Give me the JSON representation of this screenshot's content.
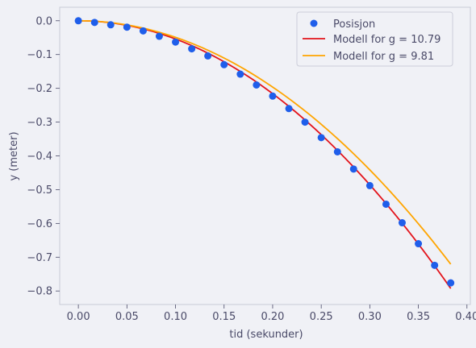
{
  "chart_data": {
    "type": "scatter",
    "xlabel": "tid (sekunder)",
    "ylabel": "y (meter)",
    "xlim": [
      -0.0192,
      0.4035
    ],
    "ylim": [
      -0.84,
      0.04
    ],
    "xticks": [
      0.0,
      0.05,
      0.1,
      0.15,
      0.2,
      0.25,
      0.3,
      0.35,
      0.4
    ],
    "xtick_labels": [
      "0.00",
      "0.05",
      "0.10",
      "0.15",
      "0.20",
      "0.25",
      "0.30",
      "0.35",
      "0.40"
    ],
    "yticks": [
      0.0,
      -0.1,
      -0.2,
      -0.3,
      -0.4,
      -0.5,
      -0.6,
      -0.7,
      -0.8
    ],
    "ytick_labels": [
      "0.0",
      "−0.1",
      "−0.2",
      "−0.3",
      "−0.4",
      "−0.5",
      "−0.6",
      "−0.7",
      "−0.8"
    ],
    "grid": false,
    "legend_position": "top-right",
    "scatter": {
      "name": "Posisjon",
      "color": "#1f5eea",
      "x": [
        0.0,
        0.0167,
        0.0333,
        0.05,
        0.0667,
        0.0833,
        0.1,
        0.1167,
        0.1333,
        0.15,
        0.1667,
        0.1833,
        0.2,
        0.2167,
        0.2333,
        0.25,
        0.2667,
        0.2833,
        0.3,
        0.3167,
        0.3333,
        0.35,
        0.3667,
        0.3833
      ],
      "y": [
        0.0,
        -0.005,
        -0.012,
        -0.019,
        -0.03,
        -0.046,
        -0.063,
        -0.083,
        -0.104,
        -0.13,
        -0.158,
        -0.19,
        -0.223,
        -0.26,
        -0.3,
        -0.346,
        -0.388,
        -0.439,
        -0.488,
        -0.543,
        -0.598,
        -0.66,
        -0.724,
        -0.776
      ]
    },
    "models": [
      {
        "name": "Modell for g = 10.79",
        "color": "#e3131b",
        "g": 10.79,
        "x_start": 0.0,
        "x_end": 0.3833
      },
      {
        "name": "Modell for g = 9.81",
        "color": "#ffa500",
        "g": 9.81,
        "x_start": 0.0,
        "x_end": 0.3833
      }
    ]
  }
}
